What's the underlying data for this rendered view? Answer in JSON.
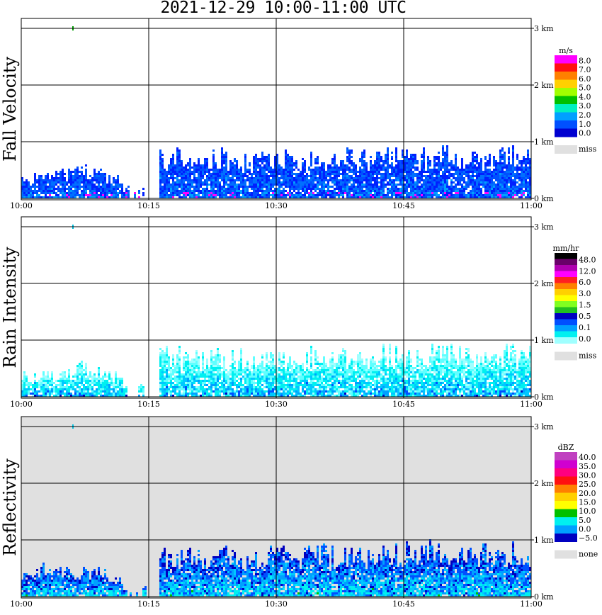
{
  "title": "2021-12-29   10:00-11:00 UTC",
  "x_ticks": [
    "10:00",
    "10:15",
    "10:30",
    "10:45",
    "11:00"
  ],
  "y_ticks": [
    "0 km",
    "1 km",
    "2 km",
    "3 km"
  ],
  "chart_data": [
    {
      "type": "heatmap",
      "ylabel": "Fall Velocity",
      "title": "",
      "colorbar": {
        "unit": "m/s",
        "colors": [
          "#ff00ff",
          "#ff1010",
          "#ff8000",
          "#ffd000",
          "#a0ff00",
          "#00c000",
          "#00f0c0",
          "#00a0ff",
          "#0050ff",
          "#0000d0"
        ],
        "labels": [
          "8.0",
          "7.0",
          "6.0",
          "5.0",
          "4.0",
          "3.0",
          "2.0",
          "1.0",
          "0.0"
        ],
        "missing_label": "miss",
        "missing_color": "#e0e0e0"
      },
      "background": "#ffffff",
      "echo_top_km": [
        0.4,
        0.45,
        0.5,
        0.6,
        0.55,
        0.45,
        0.2,
        0.3,
        0.85,
        0.85,
        0.8,
        0.85,
        0.8,
        0.75,
        0.85,
        0.8,
        0.8,
        0.85,
        0.8,
        0.85,
        0.85,
        0.9,
        0.9,
        0.85,
        0.9,
        0.9,
        0.85,
        0.8,
        0.9,
        0.85
      ]
    },
    {
      "type": "heatmap",
      "ylabel": "Rain Intensity",
      "title": "",
      "colorbar": {
        "unit": "mm/hr",
        "colors": [
          "#000000",
          "#6a006a",
          "#b000b0",
          "#ff00ff",
          "#ff2020",
          "#ff8000",
          "#ffd000",
          "#ffff00",
          "#80ff20",
          "#20c020",
          "#0000c0",
          "#0050ff",
          "#00a0ff",
          "#00f0f0",
          "#a0ffff"
        ],
        "labels": [
          "48.0",
          "12.0",
          "6.0",
          "3.0",
          "1.5",
          "0.5",
          "0.1",
          "0.0"
        ],
        "missing_label": "miss",
        "missing_color": "#e0e0e0"
      },
      "background": "#ffffff",
      "echo_top_km": [
        0.4,
        0.45,
        0.5,
        0.6,
        0.55,
        0.45,
        0.2,
        0.3,
        0.85,
        0.85,
        0.8,
        0.85,
        0.8,
        0.75,
        0.85,
        0.8,
        0.8,
        0.85,
        0.8,
        0.85,
        0.85,
        0.9,
        0.9,
        0.85,
        0.9,
        0.9,
        0.85,
        0.8,
        0.9,
        0.85
      ]
    },
    {
      "type": "heatmap",
      "ylabel": "Reflectivity",
      "title": "",
      "colorbar": {
        "unit": "dBZ",
        "colors": [
          "#c040c0",
          "#d000d0",
          "#ff0080",
          "#ff1010",
          "#ff8000",
          "#ffd000",
          "#ffff00",
          "#00c000",
          "#00f0f0",
          "#00a0ff",
          "#0000c0"
        ],
        "labels": [
          "40.0",
          "35.0",
          "30.0",
          "25.0",
          "20.0",
          "15.0",
          "10.0",
          "5.0",
          "0.0",
          "−5.0"
        ],
        "missing_label": "none",
        "missing_color": "#e0e0e0"
      },
      "background": "#e0e0e0",
      "echo_top_km": [
        0.5,
        0.55,
        0.6,
        0.5,
        0.5,
        0.4,
        0.1,
        0.2,
        0.85,
        0.85,
        0.8,
        0.85,
        0.85,
        0.8,
        0.85,
        0.85,
        0.85,
        0.9,
        0.85,
        0.9,
        0.9,
        0.9,
        0.9,
        0.9,
        0.95,
        0.9,
        0.9,
        0.9,
        0.95,
        0.9
      ]
    }
  ]
}
